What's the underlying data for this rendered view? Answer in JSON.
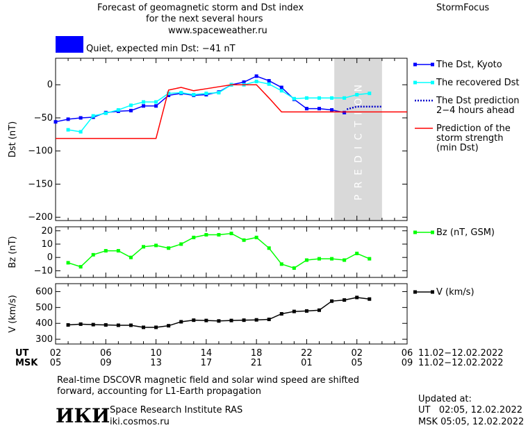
{
  "header": {
    "title_line1": "Forecast of geomagnetic storm and Dst index",
    "title_line2": "for the next several hours",
    "url": "www.spaceweather.ru",
    "brand": "StormFocus",
    "status_text": "Quiet, expected min Dst: −41 nT",
    "status_color": "#0000ff"
  },
  "footer": {
    "note_line1": "Real-time DSCOVR magnetic field and solar wind speed are shifted",
    "note_line2": "forward, accounting for L1-Earth propagation",
    "logo_text": "ИКИ",
    "institute": "Space Research Institute RAS",
    "site": "iki.cosmos.ru",
    "updated_label": "Updated at:",
    "updated_ut": "UT   02:05, 12.02.2022",
    "updated_msk": "MSK 05:05, 12.02.2022"
  },
  "chart_data": [
    {
      "type": "line",
      "ylabel": "Dst (nT)",
      "ylim": [
        -205,
        40
      ],
      "yticks": [
        0,
        -50,
        -100,
        -150,
        -200
      ],
      "xlim": [
        2,
        30
      ],
      "prediction_band": {
        "x_start": 24.2,
        "x_end": 28,
        "label": "PREDICTION",
        "color": "#d9d9d9"
      },
      "series": [
        {
          "name": "The Dst, Kyoto",
          "color": "#0000ff",
          "style": "solid-square",
          "x": [
            2,
            3,
            4,
            5,
            6,
            7,
            8,
            9,
            10,
            11,
            12,
            13,
            14,
            15,
            16,
            17,
            18,
            19,
            20,
            21,
            22,
            23,
            24,
            25
          ],
          "y": [
            -56,
            -52,
            -50,
            -49,
            -42,
            -40,
            -39,
            -32,
            -32,
            -16,
            -13,
            -16,
            -15,
            -11,
            0,
            4,
            13,
            6,
            -4,
            -22,
            -36,
            -36,
            -38,
            -42
          ]
        },
        {
          "name": "The recovered Dst",
          "color": "#00ffff",
          "style": "solid-square",
          "x": [
            3,
            4,
            5,
            6,
            7,
            8,
            9,
            10,
            11,
            12,
            13,
            14,
            15,
            16,
            17,
            18,
            19,
            20,
            21,
            22,
            23,
            24,
            25,
            26,
            27
          ],
          "y": [
            -68,
            -71,
            -47,
            -43,
            -38,
            -31,
            -26,
            -26,
            -13,
            -12,
            -15,
            -13,
            -12,
            0,
            0,
            5,
            1,
            -9,
            -21,
            -20,
            -20,
            -20,
            -20,
            -15,
            -13
          ]
        },
        {
          "name": "The Dst prediction\n2−4 hours ahead",
          "color": "#0000cc",
          "style": "dotted",
          "x": [
            25.2,
            26,
            27,
            28
          ],
          "y": [
            -37,
            -33,
            -33,
            -33
          ]
        },
        {
          "name": "Prediction of the\nstorm strength\n(min Dst)",
          "color": "#ff0000",
          "style": "solid",
          "x": [
            2,
            10,
            11,
            12,
            13,
            14,
            15,
            16,
            17,
            18,
            19,
            20,
            21,
            22,
            23,
            24,
            25,
            26,
            27,
            28,
            29,
            30
          ],
          "y": [
            -81,
            -81,
            -8,
            -4,
            -9,
            -6,
            -3,
            0,
            0,
            0,
            -20,
            -41,
            -41,
            -41,
            -41,
            -41,
            -41,
            -41,
            -41,
            -41,
            -41,
            -41
          ]
        }
      ]
    },
    {
      "type": "line",
      "ylabel": "Bz (nT)",
      "ylim": [
        -15,
        23
      ],
      "yticks": [
        20,
        10,
        0,
        -10
      ],
      "xlim": [
        2,
        30
      ],
      "series": [
        {
          "name": "Bz (nT, GSM)",
          "color": "#00ff00",
          "style": "solid-square",
          "x": [
            3,
            4,
            5,
            6,
            7,
            8,
            9,
            10,
            11,
            12,
            13,
            14,
            15,
            16,
            17,
            18,
            19,
            20,
            21,
            22,
            23,
            24,
            25,
            26,
            27
          ],
          "y": [
            -4,
            -7,
            2,
            5,
            5,
            0,
            8,
            9,
            7,
            10,
            15,
            17,
            17,
            18,
            13,
            15,
            7,
            -5,
            -8,
            -2,
            -1,
            -1,
            -2,
            3,
            -1
          ]
        }
      ]
    },
    {
      "type": "line",
      "ylabel": "V (km/s)",
      "ylim": [
        270,
        650
      ],
      "yticks": [
        600,
        500,
        400,
        300
      ],
      "xlim": [
        2,
        30
      ],
      "series": [
        {
          "name": "V (km/s)",
          "color": "#000000",
          "style": "solid-square",
          "x": [
            3,
            4,
            5,
            6,
            7,
            8,
            9,
            10,
            11,
            12,
            13,
            14,
            15,
            16,
            17,
            18,
            19,
            20,
            21,
            22,
            23,
            24,
            25,
            26,
            27
          ],
          "y": [
            390,
            395,
            392,
            390,
            388,
            388,
            375,
            375,
            385,
            410,
            420,
            418,
            415,
            418,
            420,
            422,
            425,
            460,
            475,
            478,
            483,
            540,
            547,
            563,
            553
          ]
        }
      ]
    }
  ],
  "x_axis": {
    "ut_label": "UT",
    "msk_label": "MSK",
    "ut_ticks": [
      "02",
      "06",
      "10",
      "14",
      "18",
      "22",
      "02",
      "06"
    ],
    "msk_ticks": [
      "05",
      "09",
      "13",
      "17",
      "21",
      "01",
      "05",
      "09"
    ],
    "tick_positions": [
      2,
      6,
      10,
      14,
      18,
      22,
      26,
      30
    ],
    "date_range": "11.02−12.02.2022"
  }
}
